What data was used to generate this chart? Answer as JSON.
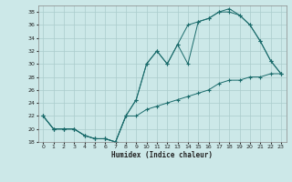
{
  "xlabel": "Humidex (Indice chaleur)",
  "bg_color": "#cce8e8",
  "grid_color": "#aacccc",
  "line_color": "#1a6b6b",
  "xlim": [
    -0.5,
    23.5
  ],
  "ylim": [
    18,
    39
  ],
  "xticks": [
    0,
    1,
    2,
    3,
    4,
    5,
    6,
    7,
    8,
    9,
    10,
    11,
    12,
    13,
    14,
    15,
    16,
    17,
    18,
    19,
    20,
    21,
    22,
    23
  ],
  "yticks": [
    18,
    20,
    22,
    24,
    26,
    28,
    30,
    32,
    34,
    36,
    38
  ],
  "line1_x": [
    0,
    1,
    2,
    3,
    4,
    5,
    6,
    7,
    8,
    9,
    10,
    11,
    12,
    13,
    14,
    15,
    16,
    17,
    18,
    19,
    20,
    21,
    22,
    23
  ],
  "line1_y": [
    22,
    20,
    20,
    20,
    19,
    18.5,
    18.5,
    18,
    22,
    22,
    23,
    23.5,
    24,
    24.5,
    25,
    25.5,
    26,
    27,
    27.5,
    27.5,
    28,
    28,
    28.5,
    28.5
  ],
  "line2_x": [
    0,
    1,
    2,
    3,
    4,
    5,
    6,
    7,
    8,
    9,
    10,
    11,
    12,
    13,
    14,
    15,
    16,
    17,
    18,
    19,
    20,
    21,
    22,
    23
  ],
  "line2_y": [
    22,
    20,
    20,
    20,
    19,
    18.5,
    18.5,
    18,
    22,
    24.5,
    30,
    32,
    30,
    33,
    30,
    36.5,
    37,
    38,
    38,
    37.5,
    36,
    33.5,
    30.5,
    28.5
  ],
  "line3_x": [
    0,
    1,
    2,
    3,
    4,
    5,
    6,
    7,
    8,
    9,
    10,
    11,
    12,
    13,
    14,
    15,
    16,
    17,
    18,
    19,
    20,
    21,
    22,
    23
  ],
  "line3_y": [
    22,
    20,
    20,
    20,
    19,
    18.5,
    18.5,
    18,
    22,
    24.5,
    30,
    32,
    30,
    33,
    36,
    36.5,
    37,
    38,
    38.5,
    37.5,
    36,
    33.5,
    30.5,
    28.5
  ]
}
